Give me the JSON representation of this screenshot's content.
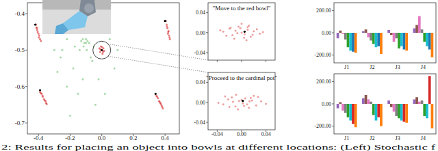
{
  "chart_data": [
    {
      "type": "scatter",
      "xlim": [
        -0.47,
        0.49
      ],
      "ylim": [
        -0.73,
        -0.37
      ],
      "xticks": [
        -0.4,
        -0.2,
        {
          "value": 0,
          "label": "0.0"
        },
        0.2,
        0.4
      ],
      "yticks": [
        -0.4,
        -0.5,
        -0.6,
        -0.7
      ],
      "grid": false,
      "series": [
        {
          "color": "#6cbf6c",
          "marker": "circle",
          "x": [
            -0.12,
            -0.1,
            -0.11,
            -0.09,
            -0.13,
            -0.1,
            -0.08,
            -0.115,
            -0.095,
            -0.14,
            -0.22,
            -0.25,
            -0.18,
            -0.05,
            0.05,
            -0.3,
            -0.22,
            -0.02,
            0.08,
            -0.15,
            -0.28,
            -0.06,
            -0.17,
            0.02,
            -0.26,
            -0.04,
            0.1,
            -0.2,
            -0.12,
            -0.07
          ],
          "values": [
            -0.47,
            -0.48,
            -0.48,
            -0.475,
            -0.475,
            -0.47,
            -0.48,
            -0.49,
            -0.5,
            -0.5,
            -0.47,
            -0.5,
            -0.55,
            -0.49,
            -0.47,
            -0.5,
            -0.6,
            -0.58,
            -0.55,
            -0.62,
            -0.56,
            -0.53,
            -0.49,
            -0.62,
            -0.52,
            -0.65,
            -0.5,
            -0.68,
            -0.58,
            -0.52
          ]
        },
        {
          "color": "#d62728",
          "marker": "circle",
          "x": [
            -0.415,
            -0.41,
            -0.405,
            -0.4,
            -0.395,
            -0.39,
            -0.385,
            -0.408,
            -0.398,
            -0.412,
            -0.015,
            -0.01,
            -0.005,
            0,
            0.005,
            0.01,
            0.015,
            -0.008,
            0.008,
            0.003,
            0.405,
            0.41,
            0.415,
            0.42,
            0.425,
            0.43,
            0.418,
            0.412,
            0.428,
            0.422,
            -0.39,
            -0.38,
            -0.372,
            -0.365,
            -0.355,
            -0.348,
            -0.385,
            -0.36,
            -0.375,
            -0.352,
            0.345,
            0.355,
            0.362,
            0.37,
            0.378,
            0.386,
            0.35,
            0.366,
            0.374,
            0.382
          ],
          "values": [
            -0.43,
            -0.44,
            -0.45,
            -0.455,
            -0.46,
            -0.47,
            -0.475,
            -0.445,
            -0.465,
            -0.438,
            -0.495,
            -0.505,
            -0.49,
            -0.5,
            -0.51,
            -0.495,
            -0.502,
            -0.498,
            -0.505,
            -0.492,
            -0.42,
            -0.43,
            -0.44,
            -0.45,
            -0.46,
            -0.47,
            -0.455,
            -0.435,
            -0.465,
            -0.448,
            -0.615,
            -0.62,
            -0.628,
            -0.635,
            -0.64,
            -0.648,
            -0.618,
            -0.638,
            -0.625,
            -0.645,
            -0.625,
            -0.632,
            -0.64,
            -0.645,
            -0.652,
            -0.66,
            -0.628,
            -0.642,
            -0.648,
            -0.656
          ]
        },
        {
          "color": "#000000",
          "marker": "circle",
          "x": [
            -0.42,
            0,
            0.4,
            -0.39,
            0.34
          ],
          "values": [
            -0.43,
            -0.5,
            -0.42,
            -0.61,
            -0.62
          ]
        }
      ]
    },
    {
      "type": "scatter",
      "title": "\"Move to the red bowl\"",
      "xlim": [
        -0.055,
        0.055
      ],
      "ylim": [
        -0.055,
        0.06
      ],
      "xticks": [
        -0.04,
        0,
        0.04
      ],
      "yticks": [
        0.04,
        {
          "value": 0,
          "label": "0.00"
        },
        -0.04
      ],
      "tick_labels": "y",
      "grid": false,
      "series": [
        {
          "color": "#e06060",
          "marker": "circle",
          "x": [
            -0.03,
            -0.02,
            -0.015,
            -0.01,
            -0.005,
            0,
            0.005,
            0.01,
            0.015,
            0.02,
            0.03,
            -0.025,
            0.025,
            -0.012,
            0.012,
            -0.002,
            0.004,
            0.018,
            -0.018,
            0.008,
            -0.035,
            0.035,
            0,
            -0.007,
            0.01
          ],
          "values": [
            0.002,
            0.008,
            -0.005,
            0.004,
            0.012,
            0,
            -0.003,
            0.006,
            -0.008,
            0.003,
            -0.002,
            -0.006,
            0.007,
            -0.012,
            0.014,
            0.009,
            -0.01,
            -0.004,
            0.01,
            -0.015,
            0.005,
            0.001,
            0.018,
            -0.001,
            0.011
          ]
        },
        {
          "color": "#000000",
          "marker": "circle",
          "x": [
            0.005
          ],
          "values": [
            0.002
          ]
        }
      ]
    },
    {
      "type": "scatter",
      "title": "\"Proceed to the cardinal pot\"",
      "xlim": [
        -0.055,
        0.055
      ],
      "ylim": [
        -0.055,
        0.06
      ],
      "xticks": [
        -0.04,
        {
          "value": 0,
          "label": "0.00"
        },
        0.04
      ],
      "yticks": [
        0.04,
        {
          "value": 0,
          "label": "0.00"
        },
        -0.04
      ],
      "grid": false,
      "series": [
        {
          "color": "#e06060",
          "marker": "circle",
          "x": [
            -0.03,
            -0.022,
            -0.016,
            -0.01,
            -0.004,
            0.002,
            0.006,
            0.012,
            0.017,
            0.024,
            0.032,
            -0.027,
            0.02,
            -0.014,
            0.009,
            -0.006,
            0,
            0.015,
            -0.02,
            0.027,
            -0.038,
            0.04,
            0.004,
            -0.009,
            0.013
          ],
          "values": [
            -0.004,
            0.006,
            0.01,
            -0.008,
            0.003,
            -0.002,
            0.008,
            -0.011,
            0.004,
            -0.006,
            0.002,
            0.012,
            0.013,
            0.001,
            -0.004,
            -0.014,
            0.005,
            0.009,
            -0.009,
            0.011,
            -0.001,
            -0.003,
            -0.007,
            0.015,
            0.002
          ]
        },
        {
          "color": "#000000",
          "marker": "circle",
          "x": [
            0.002
          ],
          "values": [
            0.003
          ]
        }
      ]
    },
    {
      "type": "bar",
      "categories": [
        "J1",
        "J2",
        "J3",
        "J4"
      ],
      "ylim": [
        -270,
        270
      ],
      "yticks": [
        {
          "value": 200,
          "label": "200.00"
        },
        {
          "value": 0,
          "label": "0.00"
        },
        {
          "value": -200,
          "label": "-200.00"
        }
      ],
      "grid": false,
      "series": [
        {
          "color": "#9467bd",
          "values": [
            -50,
            15,
            25,
            40
          ]
        },
        {
          "color": "#8c564b",
          "values": [
            20,
            30,
            -20,
            70
          ]
        },
        {
          "color": "#e377c2",
          "values": [
            -10,
            -40,
            -80,
            150
          ]
        },
        {
          "color": "#7f7f7f",
          "values": [
            -60,
            -70,
            -50,
            30
          ]
        },
        {
          "color": "#2ca02c",
          "values": [
            -130,
            -100,
            -140,
            -80
          ]
        },
        {
          "color": "#17becf",
          "values": [
            -160,
            -130,
            -120,
            -120
          ]
        },
        {
          "color": "#1f77b4",
          "values": [
            -170,
            -120,
            -150,
            -150
          ]
        },
        {
          "color": "#ff7f0e",
          "values": [
            -180,
            -190,
            -160,
            -220
          ]
        }
      ]
    },
    {
      "type": "bar",
      "categories": [
        "J1",
        "J2",
        "J3",
        "J4"
      ],
      "ylim": [
        -270,
        270
      ],
      "yticks": [
        {
          "value": 200,
          "label": "200.00"
        },
        {
          "value": 0,
          "label": "0.00"
        },
        {
          "value": -200,
          "label": "-200.00"
        }
      ],
      "grid": false,
      "series": [
        {
          "color": "#9467bd",
          "values": [
            -40,
            50,
            30,
            40
          ]
        },
        {
          "color": "#8c564b",
          "values": [
            15,
            80,
            -30,
            60
          ]
        },
        {
          "color": "#e377c2",
          "values": [
            -60,
            40,
            -70,
            20
          ]
        },
        {
          "color": "#7f7f7f",
          "values": [
            -80,
            20,
            -110,
            30
          ]
        },
        {
          "color": "#2ca02c",
          "values": [
            -120,
            -100,
            -130,
            -110
          ]
        },
        {
          "color": "#17becf",
          "values": [
            -150,
            -150,
            -150,
            -130
          ]
        },
        {
          "color": "#d62728",
          "values": [
            -180,
            -120,
            -160,
            250
          ]
        },
        {
          "color": "#ff7f0e",
          "values": [
            -210,
            -200,
            -170,
            -220
          ]
        }
      ]
    }
  ],
  "caption": "2: Results for placing an object into bowls at different locations: (Left) Stochastic f"
}
